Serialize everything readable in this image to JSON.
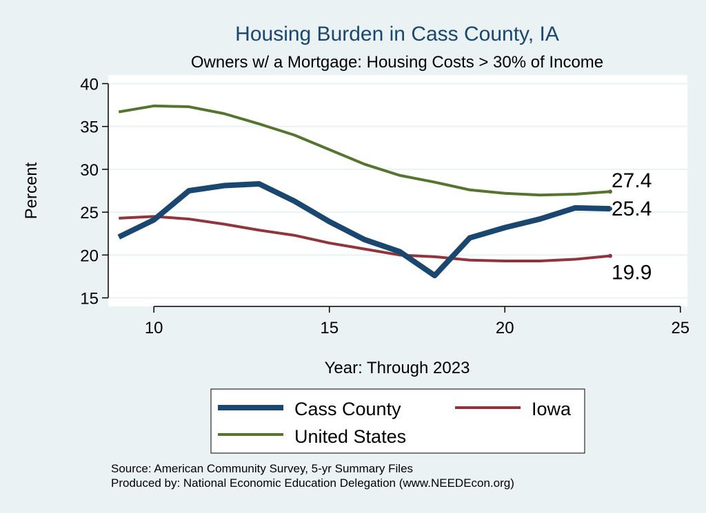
{
  "chart_data": {
    "type": "line",
    "title": "Housing Burden in Cass County, IA",
    "subtitle": "Owners w/ a Mortgage: Housing Costs > 30% of Income",
    "xlabel": "Year: Through 2023",
    "ylabel": "Percent",
    "xlim": [
      8.7,
      25.2
    ],
    "ylim": [
      14,
      41
    ],
    "x_ticks": [
      10,
      15,
      20,
      25
    ],
    "y_ticks": [
      15,
      20,
      25,
      30,
      35,
      40
    ],
    "grid": "horizontal",
    "legend_position": "bottom",
    "x": [
      9,
      10,
      11,
      12,
      13,
      14,
      15,
      16,
      17,
      18,
      19,
      20,
      21,
      22,
      23
    ],
    "series": [
      {
        "name": "Cass County",
        "color": "#1a476f",
        "values": [
          22.1,
          24.1,
          27.5,
          28.1,
          28.3,
          26.3,
          23.9,
          21.8,
          20.4,
          17.6,
          22.0,
          23.2,
          24.2,
          25.5,
          25.4
        ],
        "end_label": "25.4"
      },
      {
        "name": "Iowa",
        "color": "#90353b",
        "values": [
          24.3,
          24.5,
          24.2,
          23.6,
          22.9,
          22.3,
          21.4,
          20.7,
          20.0,
          19.8,
          19.4,
          19.3,
          19.3,
          19.5,
          19.9
        ],
        "end_label": "19.9"
      },
      {
        "name": "United States",
        "color": "#55752f",
        "values": [
          36.7,
          37.4,
          37.3,
          36.5,
          35.3,
          34.0,
          32.3,
          30.6,
          29.3,
          28.5,
          27.6,
          27.2,
          27.0,
          27.1,
          27.4
        ],
        "end_label": "27.4"
      }
    ],
    "notes": [
      "Source: American Community Survey, 5-yr Summary Files",
      "Produced by: National Economic Education Delegation (www.NEEDEcon.org)"
    ]
  }
}
